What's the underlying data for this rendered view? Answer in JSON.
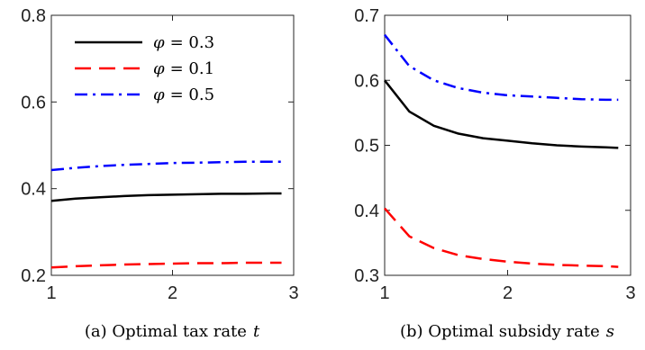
{
  "colors": {
    "axis": "#262626",
    "series_black": "#000000",
    "series_red": "#ff0000",
    "series_blue": "#0000ff"
  },
  "chart_data": [
    {
      "type": "line",
      "caption": "(a) Optimal tax rate",
      "caption_var": "t",
      "xlim": [
        1,
        3
      ],
      "ylim": [
        0.2,
        0.8
      ],
      "x_ticks": [
        "1",
        "2",
        "3"
      ],
      "y_ticks": [
        "0.2",
        "0.4",
        "0.6",
        "0.8"
      ],
      "x": [
        1.0,
        1.2,
        1.4,
        1.6,
        1.8,
        2.0,
        2.2,
        2.4,
        2.6,
        2.8,
        2.9
      ],
      "grid": false,
      "legend_position": "top-left",
      "series": [
        {
          "name": "φ = 0.3",
          "legend_symbol": "φ",
          "legend_value": "= 0.3",
          "color": "#000000",
          "dash": "solid",
          "values": [
            0.372,
            0.377,
            0.38,
            0.383,
            0.385,
            0.386,
            0.387,
            0.388,
            0.388,
            0.389,
            0.389
          ]
        },
        {
          "name": "φ = 0.1",
          "legend_symbol": "φ",
          "legend_value": "= 0.1",
          "color": "#ff0000",
          "dash": "dashed",
          "values": [
            0.218,
            0.221,
            0.223,
            0.225,
            0.226,
            0.227,
            0.228,
            0.228,
            0.229,
            0.229,
            0.229
          ]
        },
        {
          "name": "φ = 0.5",
          "legend_symbol": "φ",
          "legend_value": "= 0.5",
          "color": "#0000ff",
          "dash": "dashdot",
          "values": [
            0.443,
            0.448,
            0.452,
            0.455,
            0.457,
            0.459,
            0.46,
            0.461,
            0.462,
            0.462,
            0.462
          ]
        }
      ]
    },
    {
      "type": "line",
      "caption": "(b) Optimal subsidy rate",
      "caption_var": "s",
      "xlim": [
        1,
        3
      ],
      "ylim": [
        0.3,
        0.7
      ],
      "x_ticks": [
        "1",
        "2",
        "3"
      ],
      "y_ticks": [
        "0.3",
        "0.4",
        "0.5",
        "0.6",
        "0.7"
      ],
      "x": [
        1.0,
        1.2,
        1.4,
        1.6,
        1.8,
        2.0,
        2.2,
        2.4,
        2.6,
        2.8,
        2.9
      ],
      "grid": false,
      "series": [
        {
          "color": "#000000",
          "dash": "solid",
          "values": [
            0.6,
            0.552,
            0.53,
            0.518,
            0.511,
            0.507,
            0.503,
            0.5,
            0.498,
            0.497,
            0.496
          ]
        },
        {
          "color": "#ff0000",
          "dash": "dashed",
          "values": [
            0.403,
            0.36,
            0.342,
            0.331,
            0.325,
            0.321,
            0.318,
            0.316,
            0.315,
            0.314,
            0.313
          ]
        },
        {
          "color": "#0000ff",
          "dash": "dashdot",
          "values": [
            0.67,
            0.622,
            0.6,
            0.588,
            0.581,
            0.577,
            0.575,
            0.573,
            0.571,
            0.57,
            0.57
          ]
        }
      ]
    }
  ]
}
